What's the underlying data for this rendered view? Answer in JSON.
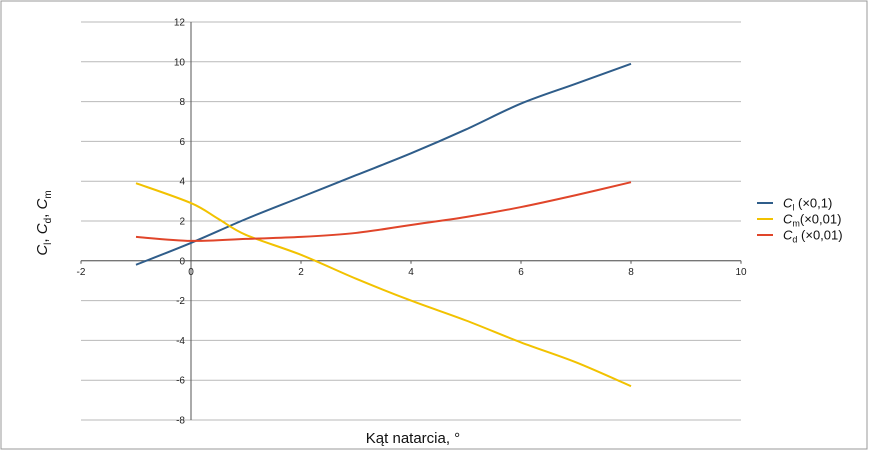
{
  "chart_data": {
    "type": "line",
    "title": "",
    "xlabel": "Kąt natarcia, °",
    "ylabel": "Cl, Cd, Cm",
    "ylabel_parts": [
      {
        "sym": "C",
        "sub": "l",
        "sep": ", "
      },
      {
        "sym": "C",
        "sub": "d",
        "sep": ", "
      },
      {
        "sym": "C",
        "sub": "m",
        "sep": ""
      }
    ],
    "xlim": [
      -2,
      10
    ],
    "ylim": [
      -8,
      12
    ],
    "xticks": [
      -2,
      0,
      2,
      4,
      6,
      8,
      10
    ],
    "yticks": [
      -8,
      -6,
      -4,
      -2,
      0,
      2,
      4,
      6,
      8,
      10,
      12
    ],
    "grid": "horizontal",
    "legend_position": "right",
    "series": [
      {
        "name": "Cl (×0,1)",
        "legend_sym": "C",
        "legend_sub": "l",
        "legend_scale": " (×0,1)",
        "color": "#2f5d8a",
        "x": [
          -1,
          0,
          1,
          2,
          3,
          4,
          5,
          6,
          7,
          8
        ],
        "y": [
          -0.2,
          0.9,
          2.1,
          3.2,
          4.3,
          5.4,
          6.6,
          7.9,
          8.9,
          9.9
        ]
      },
      {
        "name": "Cm (×0,01)",
        "legend_sym": "C",
        "legend_sub": "m",
        "legend_scale": "(×0,01)",
        "color": "#f2c200",
        "x": [
          -1,
          0,
          0.5,
          1,
          2,
          3,
          4,
          5,
          6,
          7,
          8
        ],
        "y": [
          3.9,
          2.9,
          2.1,
          1.3,
          0.3,
          -0.9,
          -2.0,
          -3.0,
          -4.1,
          -5.1,
          -6.3
        ]
      },
      {
        "name": "Cd (×0,01)",
        "legend_sym": "C",
        "legend_sub": "d",
        "legend_scale": " (×0,01)",
        "color": "#e0452a",
        "x": [
          -1,
          0,
          1,
          2,
          3,
          4,
          5,
          6,
          7,
          8
        ],
        "y": [
          1.2,
          1.0,
          1.1,
          1.2,
          1.4,
          1.8,
          2.2,
          2.7,
          3.3,
          3.95
        ]
      }
    ]
  }
}
